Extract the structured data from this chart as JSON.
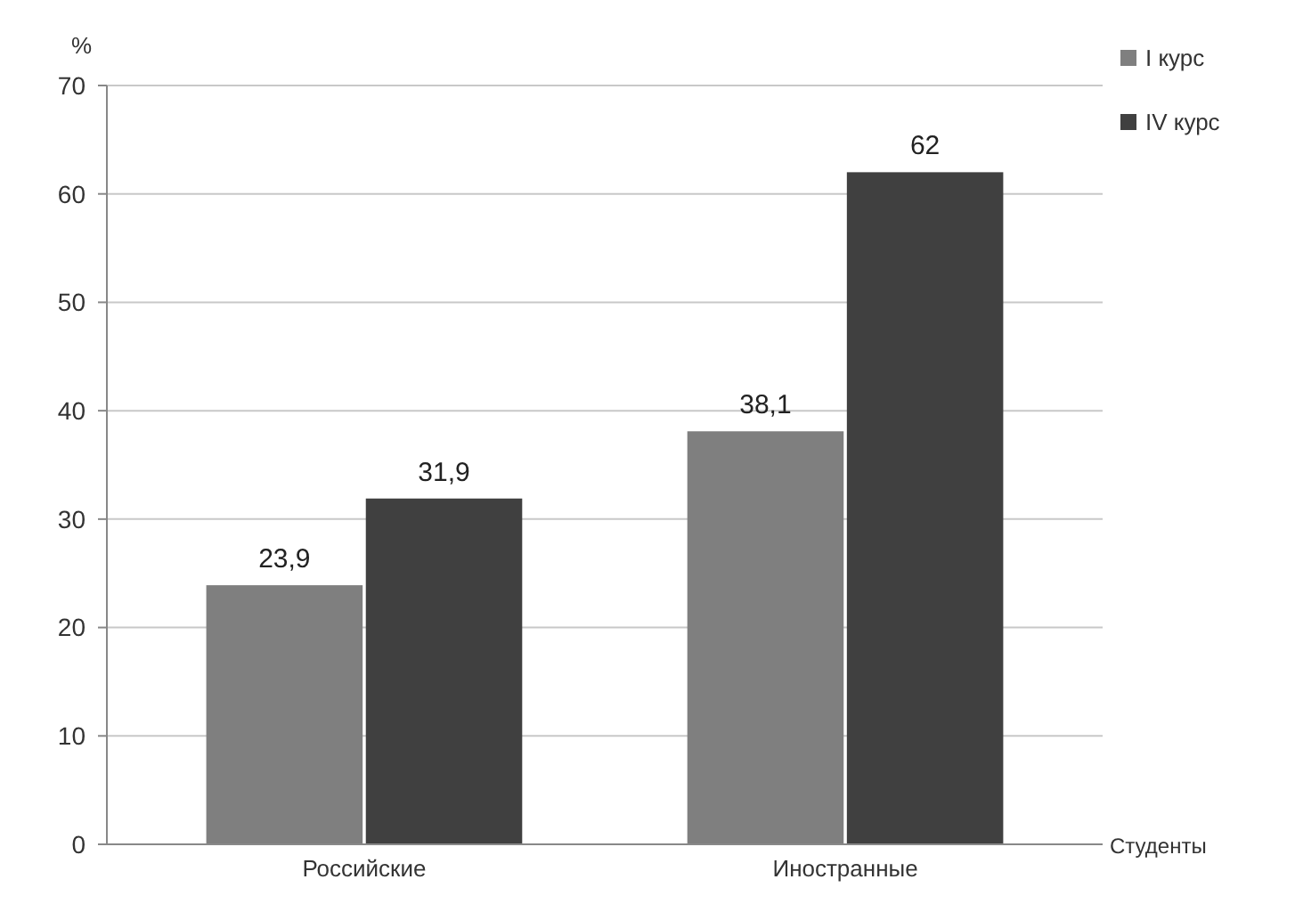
{
  "chart_data": {
    "type": "bar",
    "ylabel": "%",
    "xlabel": "Студенты",
    "categories": [
      "Российские",
      "Иностранные"
    ],
    "series": [
      {
        "name": "I курс",
        "color": "#7f7f7f",
        "values": [
          23.9,
          38.1
        ],
        "value_labels": [
          "23,9",
          "38,1"
        ]
      },
      {
        "name": "IV курс",
        "color": "#404040",
        "values": [
          31.9,
          62
        ],
        "value_labels": [
          "31,9",
          "62"
        ]
      }
    ],
    "ylim": [
      0,
      70
    ],
    "yticks": [
      0,
      10,
      20,
      30,
      40,
      50,
      60,
      70
    ],
    "grid": "y",
    "legend": "top right"
  }
}
